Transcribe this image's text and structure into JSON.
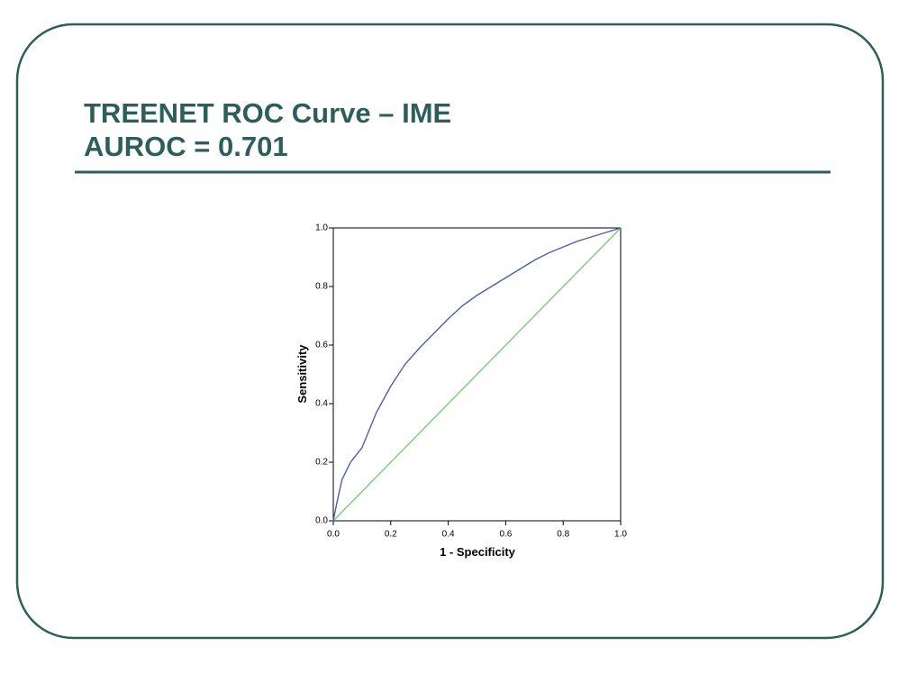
{
  "chart_data": {
    "type": "line",
    "title": "TREENET ROC Curve – IME",
    "subtitle": "AUROC = 0.701",
    "xlabel": "1 - Specificity",
    "ylabel": "Sensitivity",
    "xlim": [
      0,
      1
    ],
    "ylim": [
      0,
      1
    ],
    "xticks": [
      {
        "value": 0,
        "label": "0.0"
      },
      0.2,
      0.4,
      0.6,
      0.8,
      {
        "value": 1,
        "label": "1.0"
      }
    ],
    "yticks": [
      {
        "value": 0,
        "label": "0.0"
      },
      0.2,
      0.4,
      0.6,
      0.8,
      {
        "value": 1,
        "label": "1.0"
      }
    ],
    "series": [
      {
        "color": "#4a5fae",
        "x": [
          0,
          0.01,
          0.03,
          0.06,
          0.1,
          0.15,
          0.2,
          0.25,
          0.3,
          0.35,
          0.4,
          0.45,
          0.5,
          0.55,
          0.6,
          0.65,
          0.7,
          0.75,
          0.8,
          0.85,
          0.9,
          0.95,
          1
        ],
        "values": [
          0,
          0.05,
          0.14,
          0.2,
          0.25,
          0.37,
          0.46,
          0.535,
          0.59,
          0.64,
          0.69,
          0.735,
          0.77,
          0.8,
          0.83,
          0.86,
          0.89,
          0.915,
          0.935,
          0.955,
          0.97,
          0.985,
          1
        ]
      },
      {
        "color": "#7ccb7a",
        "x": [
          0,
          1
        ],
        "values": [
          0,
          1
        ]
      }
    ]
  }
}
